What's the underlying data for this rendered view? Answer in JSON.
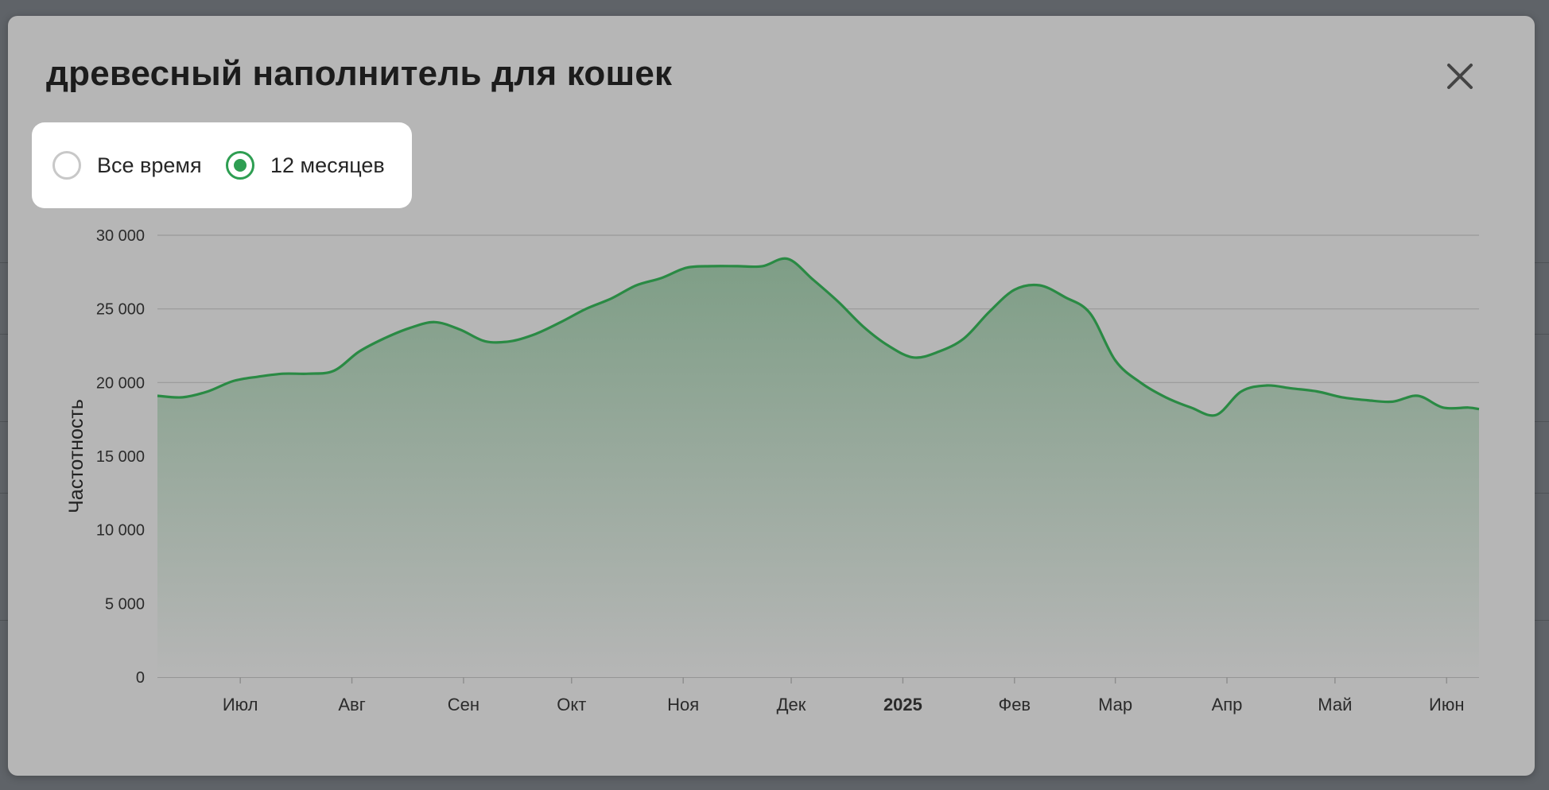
{
  "modal": {
    "title": "древесный наполнитель для кошек",
    "close_label": "Закрыть"
  },
  "period_options": [
    {
      "label": "Все время",
      "selected": false
    },
    {
      "label": "12 месяцев",
      "selected": true
    }
  ],
  "colors": {
    "line": "#2a8a44",
    "area_top": "#7e9e86",
    "area_bottom": "#b6b6b6",
    "grid": "#999999",
    "radio_active": "#2e9e52"
  },
  "icons": {
    "close": "close-icon"
  },
  "chart_data": {
    "type": "area",
    "title": "",
    "xlabel": "",
    "ylabel": "Частотность",
    "ylim": [
      0,
      30000
    ],
    "yticks": [
      0,
      5000,
      10000,
      15000,
      20000,
      25000,
      30000
    ],
    "ytick_labels": [
      "0",
      "5 000",
      "10 000",
      "15 000",
      "20 000",
      "25 000",
      "30 000"
    ],
    "xlim": [
      "2024-06-08",
      "2025-06-10"
    ],
    "xticks": [
      {
        "date": "2024-07-01",
        "label": "Июл",
        "bold": false
      },
      {
        "date": "2024-08-01",
        "label": "Авг",
        "bold": false
      },
      {
        "date": "2024-09-01",
        "label": "Сен",
        "bold": false
      },
      {
        "date": "2024-10-01",
        "label": "Окт",
        "bold": false
      },
      {
        "date": "2024-11-01",
        "label": "Ноя",
        "bold": false
      },
      {
        "date": "2024-12-01",
        "label": "Дек",
        "bold": false
      },
      {
        "date": "2025-01-01",
        "label": "2025",
        "bold": true
      },
      {
        "date": "2025-02-01",
        "label": "Фев",
        "bold": false
      },
      {
        "date": "2025-03-01",
        "label": "Мар",
        "bold": false
      },
      {
        "date": "2025-04-01",
        "label": "Апр",
        "bold": false
      },
      {
        "date": "2025-05-01",
        "label": "Май",
        "bold": false
      },
      {
        "date": "2025-06-01",
        "label": "Июн",
        "bold": false
      }
    ],
    "grid": true,
    "legend": "none",
    "series": [
      {
        "name": "",
        "x": [
          "2024-06-08",
          "2024-06-15",
          "2024-06-22",
          "2024-06-29",
          "2024-07-06",
          "2024-07-13",
          "2024-07-20",
          "2024-07-27",
          "2024-08-03",
          "2024-08-10",
          "2024-08-17",
          "2024-08-24",
          "2024-08-31",
          "2024-09-07",
          "2024-09-14",
          "2024-09-21",
          "2024-09-28",
          "2024-10-05",
          "2024-10-12",
          "2024-10-19",
          "2024-10-26",
          "2024-11-02",
          "2024-11-09",
          "2024-11-16",
          "2024-11-23",
          "2024-11-30",
          "2024-12-07",
          "2024-12-14",
          "2024-12-21",
          "2024-12-28",
          "2025-01-04",
          "2025-01-11",
          "2025-01-18",
          "2025-01-25",
          "2025-02-01",
          "2025-02-08",
          "2025-02-15",
          "2025-02-22",
          "2025-03-01",
          "2025-03-08",
          "2025-03-15",
          "2025-03-22",
          "2025-03-29",
          "2025-04-05",
          "2025-04-12",
          "2025-04-19",
          "2025-04-26",
          "2025-05-03",
          "2025-05-10",
          "2025-05-17",
          "2025-05-24",
          "2025-05-31",
          "2025-06-07",
          "2025-06-10"
        ],
        "values": [
          19100,
          19000,
          19400,
          20100,
          20400,
          20600,
          20600,
          20800,
          22100,
          23000,
          23700,
          24100,
          23600,
          22800,
          22800,
          23300,
          24100,
          25000,
          25700,
          26600,
          27100,
          27800,
          27900,
          27900,
          27900,
          28400,
          27000,
          25500,
          23800,
          22500,
          21700,
          22100,
          23000,
          24800,
          26300,
          26600,
          25800,
          24700,
          21500,
          20000,
          19000,
          18300,
          17800,
          19400,
          19800,
          19600,
          19400,
          19000,
          18800,
          18700,
          19100,
          18300,
          18300,
          18200
        ]
      }
    ]
  }
}
